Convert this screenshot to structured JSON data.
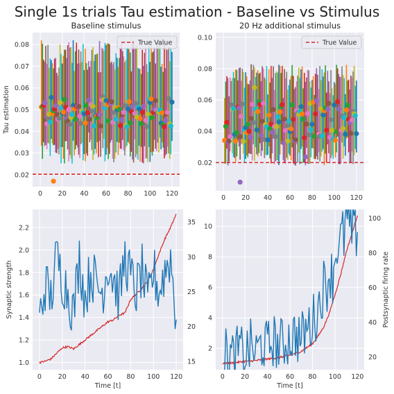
{
  "figure": {
    "title": "Single 1s trials Tau estimation - Baseline vs Stimulus",
    "colors": {
      "panel_bg": "#eaeaf2",
      "grid": "#ffffff",
      "true_value": "#d62728",
      "strength": "#d62728",
      "rate": "#1f77b4",
      "palette": [
        "#1f77b4",
        "#ff7f0e",
        "#2ca02c",
        "#d62728",
        "#9467bd",
        "#8c564b",
        "#e377c2",
        "#7f7f7f",
        "#bcbd22",
        "#17becf"
      ]
    }
  },
  "chart_data": [
    {
      "id": "tl",
      "type": "scatter",
      "title": "Baseline stimulus",
      "xlabel": "",
      "ylabel": "Tau estimation",
      "xlim": [
        -7,
        127
      ],
      "ylim": [
        0.0145,
        0.0855
      ],
      "xticks": [
        "0",
        "20",
        "40",
        "60",
        "80",
        "100",
        "120"
      ],
      "yticks": [
        "0.02",
        "0.03",
        "0.04",
        "0.05",
        "0.06",
        "0.07",
        "0.08"
      ],
      "legend": {
        "label": "True Value",
        "position": "top-right"
      },
      "true_value": 0.0202,
      "n_trials": 120,
      "estimates_typical_range": [
        0.042,
        0.056
      ],
      "error_bar_typical_range": [
        0.025,
        0.082
      ],
      "outlier": {
        "x": 12,
        "y": 0.017
      }
    },
    {
      "id": "tr",
      "type": "scatter",
      "title": "20 Hz additional stimulus",
      "xlabel": "",
      "ylabel": "",
      "xlim": [
        -7,
        127
      ],
      "ylim": [
        0.002,
        0.103
      ],
      "xticks": [
        "0",
        "20",
        "40",
        "60",
        "80",
        "100",
        "120"
      ],
      "yticks": [
        "0.02",
        "0.04",
        "0.06",
        "0.08",
        "0.10"
      ],
      "legend": {
        "label": "True Value",
        "position": "top-right"
      },
      "true_value": 0.02,
      "n_trials": 120,
      "estimates_typical_range": [
        0.033,
        0.06
      ],
      "error_bar_typical_range": [
        0.018,
        0.083
      ],
      "outlier": {
        "x": 15,
        "y": 0.0075
      }
    },
    {
      "id": "bl",
      "type": "line",
      "title": "",
      "xlabel": "Time [t]",
      "ylabel": "Synaptic strength",
      "ylabel_right": "",
      "xlim": [
        -6,
        126
      ],
      "ylim": [
        0.935,
        2.36
      ],
      "ylim_right": [
        13.8,
        36.8
      ],
      "xticks": [
        "0",
        "20",
        "40",
        "60",
        "80",
        "100",
        "120"
      ],
      "yticks": [
        "1.0",
        "1.2",
        "1.4",
        "1.6",
        "1.8",
        "2.0",
        "2.2"
      ],
      "yticks_right": [
        "15",
        "20",
        "25",
        "30",
        "35"
      ],
      "series": [
        {
          "axis": "left",
          "points": [
            [
              0,
              1.0
            ],
            [
              5,
              1.01
            ],
            [
              10,
              1.03
            ],
            [
              15,
              1.08
            ],
            [
              20,
              1.13
            ],
            [
              25,
              1.14
            ],
            [
              30,
              1.12
            ],
            [
              35,
              1.16
            ],
            [
              40,
              1.2
            ],
            [
              45,
              1.24
            ],
            [
              50,
              1.28
            ],
            [
              55,
              1.32
            ],
            [
              60,
              1.36
            ],
            [
              65,
              1.38
            ],
            [
              70,
              1.42
            ],
            [
              75,
              1.44
            ],
            [
              80,
              1.56
            ],
            [
              85,
              1.61
            ],
            [
              90,
              1.66
            ],
            [
              95,
              1.72
            ],
            [
              100,
              1.83
            ],
            [
              105,
              1.97
            ],
            [
              110,
              2.1
            ],
            [
              115,
              2.2
            ],
            [
              120,
              2.32
            ]
          ]
        },
        {
          "axis": "right",
          "points": [
            [
              0,
              21
            ],
            [
              5,
              26
            ],
            [
              10,
              24
            ],
            [
              15,
              30
            ],
            [
              20,
              27
            ],
            [
              25,
              25
            ],
            [
              30,
              22
            ],
            [
              35,
              30
            ],
            [
              40,
              24
            ],
            [
              45,
              28
            ],
            [
              50,
              26
            ],
            [
              55,
              25
            ],
            [
              60,
              29
            ],
            [
              65,
              27
            ],
            [
              70,
              24
            ],
            [
              75,
              30
            ],
            [
              80,
              27
            ],
            [
              85,
              25
            ],
            [
              90,
              28
            ],
            [
              95,
              23
            ],
            [
              100,
              28
            ],
            [
              105,
              25
            ],
            [
              110,
              28
            ],
            [
              115,
              30
            ],
            [
              120,
              21
            ]
          ]
        }
      ]
    },
    {
      "id": "br",
      "type": "line",
      "title": "",
      "xlabel": "Time [t]",
      "ylabel": "",
      "ylabel_right": "Postsynaptic firing rate",
      "xlim": [
        -6,
        126
      ],
      "ylim": [
        0.6,
        11.1
      ],
      "ylim_right": [
        12.5,
        105
      ],
      "xticks": [
        "0",
        "20",
        "40",
        "60",
        "80",
        "100",
        "120"
      ],
      "yticks": [
        "2",
        "4",
        "6",
        "8",
        "10"
      ],
      "yticks_right": [
        "20",
        "40",
        "60",
        "80",
        "100"
      ],
      "series": [
        {
          "axis": "left",
          "points": [
            [
              0,
              1.0
            ],
            [
              10,
              1.05
            ],
            [
              20,
              1.15
            ],
            [
              30,
              1.2
            ],
            [
              40,
              1.3
            ],
            [
              50,
              1.4
            ],
            [
              60,
              1.55
            ],
            [
              70,
              1.8
            ],
            [
              80,
              2.3
            ],
            [
              85,
              2.8
            ],
            [
              90,
              3.4
            ],
            [
              95,
              4.3
            ],
            [
              100,
              5.5
            ],
            [
              105,
              6.8
            ],
            [
              110,
              8.3
            ],
            [
              115,
              9.5
            ],
            [
              120,
              10.7
            ]
          ]
        },
        {
          "axis": "right",
          "points": [
            [
              0,
              20
            ],
            [
              5,
              22
            ],
            [
              10,
              19
            ],
            [
              15,
              24
            ],
            [
              20,
              21
            ],
            [
              25,
              26
            ],
            [
              30,
              22
            ],
            [
              35,
              28
            ],
            [
              40,
              25
            ],
            [
              45,
              30
            ],
            [
              50,
              26
            ],
            [
              55,
              28
            ],
            [
              60,
              31
            ],
            [
              65,
              33
            ],
            [
              70,
              30
            ],
            [
              75,
              36
            ],
            [
              80,
              40
            ],
            [
              85,
              48
            ],
            [
              88,
              55
            ],
            [
              90,
              62
            ],
            [
              92,
              58
            ],
            [
              95,
              70
            ],
            [
              98,
              66
            ],
            [
              100,
              78
            ],
            [
              102,
              85
            ],
            [
              104,
              80
            ],
            [
              106,
              92
            ],
            [
              108,
              88
            ],
            [
              110,
              100
            ],
            [
              112,
              95
            ],
            [
              115,
              92
            ],
            [
              118,
              90
            ],
            [
              120,
              92
            ]
          ]
        }
      ]
    }
  ]
}
